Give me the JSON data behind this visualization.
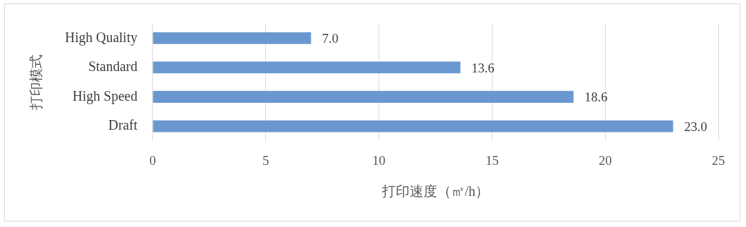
{
  "chart_data": {
    "type": "bar",
    "orientation": "horizontal",
    "xlabel": "打印速度（㎡/h）",
    "ylabel": "打印模式",
    "categories": [
      "High Quality",
      "Standard",
      "High Speed",
      "Draft"
    ],
    "values": [
      7.0,
      13.6,
      18.6,
      23.0
    ],
    "value_labels": [
      "7.0",
      "13.6",
      "18.6",
      "23.0"
    ],
    "color": "#6a97d0",
    "xlim": [
      0,
      25
    ],
    "xticks": [
      0,
      5,
      10,
      15,
      20,
      25
    ],
    "grid": "x",
    "legend": false
  }
}
